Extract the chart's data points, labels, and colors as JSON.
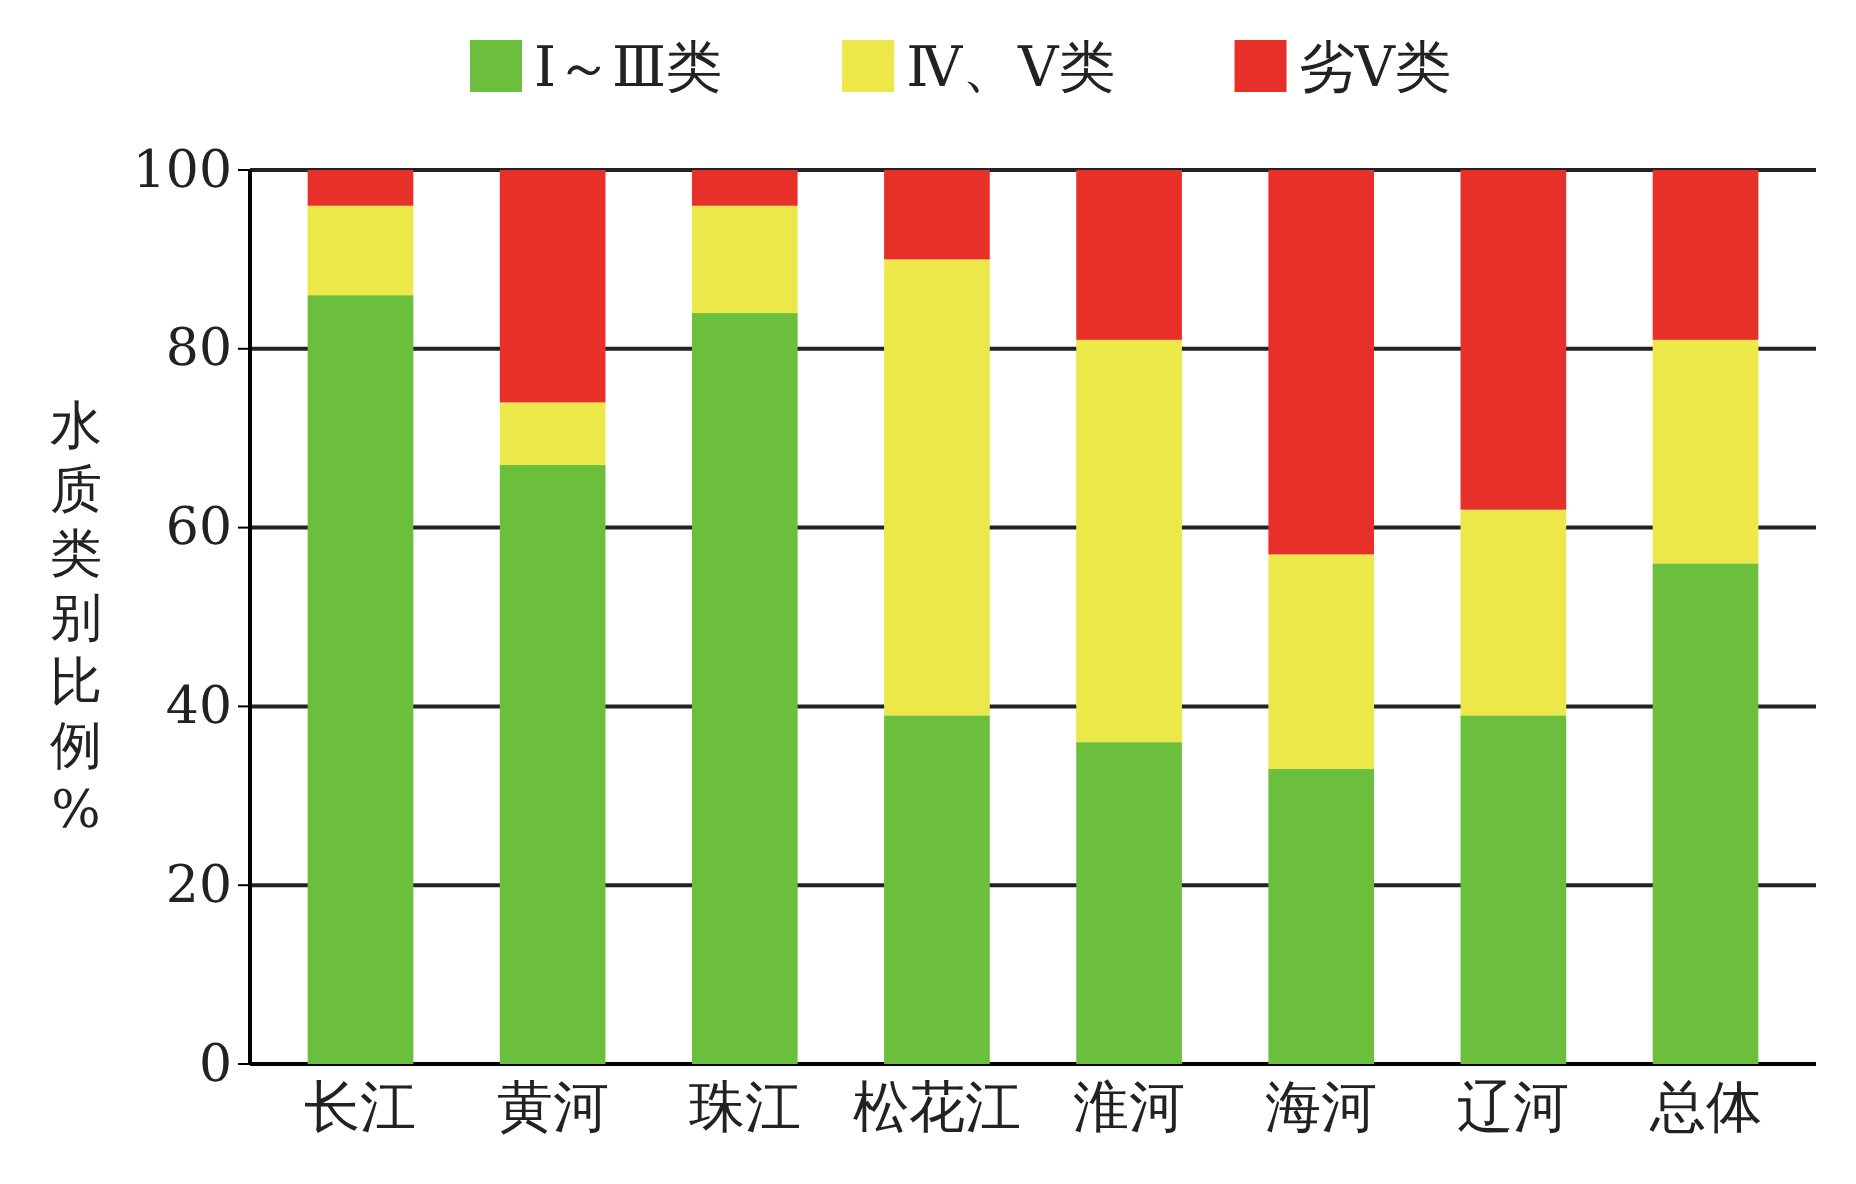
{
  "chart_data": {
    "type": "bar",
    "stacked": true,
    "ylabel": "水质类别比例%",
    "categories": [
      "长江",
      "黄河",
      "珠江",
      "松花江",
      "淮河",
      "海河",
      "辽河",
      "总体"
    ],
    "series": [
      {
        "name": "Ⅰ～Ⅲ类",
        "color": "#6cbf3c",
        "values": [
          86,
          67,
          84,
          39,
          36,
          33,
          39,
          56
        ]
      },
      {
        "name": "Ⅳ、Ⅴ类",
        "color": "#ede84a",
        "values": [
          10,
          7,
          12,
          51,
          45,
          24,
          23,
          25
        ]
      },
      {
        "name": "劣Ⅴ类",
        "color": "#e8302a",
        "values": [
          4,
          26,
          4,
          10,
          19,
          43,
          38,
          19
        ]
      }
    ],
    "ylim": [
      0,
      100
    ],
    "yticks": [
      0,
      20,
      40,
      60,
      80,
      100
    ],
    "grid": "y",
    "legend": "top"
  }
}
